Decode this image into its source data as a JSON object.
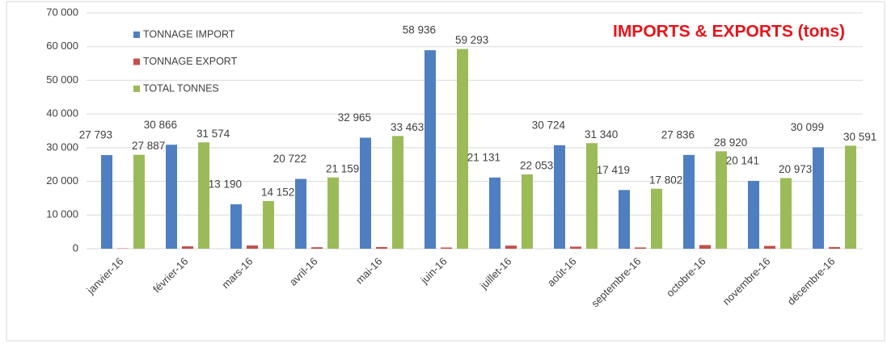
{
  "chart_data": {
    "type": "bar",
    "title": "IMPORTS & EXPORTS (tons)",
    "categories": [
      "janvier-16",
      "février-16",
      "mars-16",
      "avril-16",
      "mai-16",
      "juin-16",
      "juillet-16",
      "août-16",
      "septembre-16",
      "octobre-16",
      "novembre-16",
      "décembre-16"
    ],
    "series": [
      {
        "name": "TONNAGE IMPORT",
        "color": "#4f7fc0",
        "values": [
          27793,
          30866,
          13190,
          20722,
          32965,
          58936,
          21131,
          30724,
          17419,
          27836,
          20141,
          30099
        ],
        "value_labels": [
          "27 793",
          "30 866",
          "13 190",
          "20 722",
          "32 965",
          "58 936",
          "21 131",
          "30 724",
          "17 419",
          "27 836",
          "20 141",
          "30 099"
        ]
      },
      {
        "name": "TONNAGE EXPORT",
        "color": "#c0504d",
        "values": [
          94,
          708,
          962,
          437,
          498,
          357,
          922,
          616,
          383,
          1084,
          832,
          492
        ]
      },
      {
        "name": "TOTAL  TONNES",
        "color": "#9bbb59",
        "values": [
          27887,
          31574,
          14152,
          21159,
          33463,
          59293,
          22053,
          31340,
          17802,
          28920,
          20973,
          30591
        ],
        "value_labels": [
          "27 887",
          "31 574",
          "14 152",
          "21 159",
          "33 463",
          "59 293",
          "22 053",
          "31 340",
          "17 802",
          "28 920",
          "20 973",
          "30 591"
        ]
      }
    ],
    "ylim": [
      0,
      70000
    ],
    "yticks": [
      {
        "value": 0,
        "label": "0"
      },
      {
        "value": 10000,
        "label": "10 000"
      },
      {
        "value": 20000,
        "label": "20 000"
      },
      {
        "value": 30000,
        "label": "30 000"
      },
      {
        "value": 40000,
        "label": "40 000"
      },
      {
        "value": 50000,
        "label": "50 000"
      },
      {
        "value": 60000,
        "label": "60 000"
      },
      {
        "value": 70000,
        "label": "70 000"
      }
    ],
    "grid": true,
    "legend": "top-left"
  }
}
